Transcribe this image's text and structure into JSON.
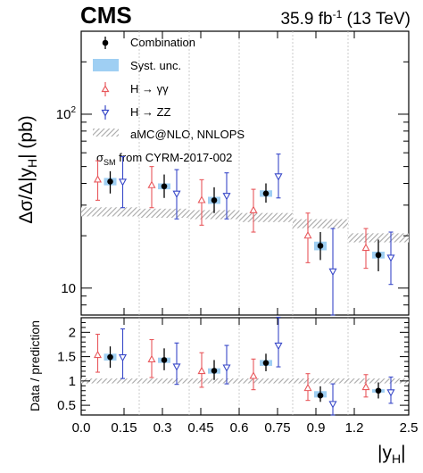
{
  "chart_data": {
    "type": "scatter",
    "header": {
      "experiment": "CMS",
      "lumi": "35.9 fb",
      "lumi_exp": "-1",
      "energy": " (13 TeV)"
    },
    "xlabel": "|y",
    "xlabel_sub": "H",
    "xlabel_end": "|",
    "ylabel": "Δσ/Δ|y",
    "ylabel_sub": "H",
    "ylabel_end": "| (pb)",
    "ratio_ylabel": "Data / prediction",
    "xlim": [
      0,
      2.5
    ],
    "x_ticks": [
      "0.0",
      "0.15",
      "0.3",
      "0.45",
      "0.6",
      "0.75",
      "0.9",
      "1.2",
      "2.5"
    ],
    "x_tick_values": [
      0,
      0.15,
      0.3,
      0.45,
      0.6,
      0.75,
      0.9,
      1.2,
      2.5
    ],
    "main": {
      "ylim": [
        7,
        300
      ],
      "log": true,
      "y_tick_labels": [
        "10",
        "10",
        "2"
      ],
      "bin_edges": [
        0,
        0.15,
        0.3,
        0.6,
        0.9,
        1.2,
        2.5
      ],
      "prediction": [
        27.5,
        27.0,
        26.5,
        25.5,
        23.5,
        19.5
      ],
      "combination": {
        "name": "Combination",
        "y": [
          41,
          38.5,
          32,
          35,
          17.5,
          15.5
        ],
        "lo": [
          35,
          33,
          27,
          31,
          14.5,
          12.5
        ],
        "hi": [
          47,
          45,
          38,
          40,
          21,
          19
        ]
      },
      "hgg": {
        "name": "H → γγ",
        "y": [
          42,
          39,
          32,
          28,
          20,
          17
        ],
        "lo": [
          32,
          29,
          23,
          21,
          14,
          13
        ],
        "hi": [
          54,
          50,
          42,
          37,
          27,
          22
        ]
      },
      "hzz": {
        "name": "H → ZZ",
        "y": [
          41,
          35,
          34,
          44,
          12.5,
          15
        ],
        "lo": [
          29,
          25,
          25,
          33,
          7,
          10.5
        ],
        "hi": [
          57,
          48,
          46,
          59,
          22,
          21
        ]
      },
      "syst": {
        "lo": [
          39,
          37,
          30.5,
          33.5,
          16.5,
          14.8
        ],
        "hi": [
          43,
          40,
          33.5,
          36.5,
          18.5,
          16.2
        ]
      }
    },
    "ratio": {
      "ylim": [
        0.3,
        2.3
      ],
      "y_ticks": [
        0.5,
        1,
        1.5,
        2
      ],
      "y_tick_labels": [
        "0.5",
        "1",
        "1.5",
        "2"
      ],
      "band": [
        0.95,
        1.05
      ],
      "combination": {
        "y": [
          1.49,
          1.43,
          1.21,
          1.37,
          0.7,
          0.8
        ],
        "lo": [
          1.27,
          1.22,
          1.02,
          1.2,
          0.57,
          0.64
        ],
        "hi": [
          1.71,
          1.67,
          1.43,
          1.56,
          0.89,
          0.97
        ]
      },
      "hgg": {
        "y": [
          1.53,
          1.44,
          1.2,
          1.1,
          0.85,
          0.87
        ],
        "lo": [
          1.18,
          1.07,
          0.87,
          0.82,
          0.6,
          0.67
        ],
        "hi": [
          1.96,
          1.85,
          1.58,
          1.45,
          1.15,
          1.13
        ]
      },
      "hzz": {
        "y": [
          1.49,
          1.3,
          1.28,
          1.73,
          0.53,
          0.77
        ],
        "lo": [
          1.05,
          0.93,
          0.94,
          1.29,
          0.3,
          0.54
        ],
        "hi": [
          2.07,
          1.78,
          1.73,
          2.31,
          0.94,
          1.08
        ]
      },
      "syst": {
        "lo": [
          1.42,
          1.37,
          1.15,
          1.31,
          0.66,
          0.76
        ],
        "hi": [
          1.56,
          1.48,
          1.26,
          1.43,
          0.79,
          0.83
        ]
      }
    },
    "legend": {
      "combination": "Combination",
      "syst": "Syst. unc.",
      "hgg": "H → γγ",
      "hzz": "H → ZZ",
      "theory": "aMC@NLO, NNLOPS",
      "sm_prefix": "σ",
      "sm_sub": "SM",
      "sm_suffix": " from CYRM-2017-002"
    },
    "colors": {
      "combination": "#000000",
      "syst": "#9fcff3",
      "hgg": "#e8575b",
      "hzz": "#3848c8",
      "theory": "#a8a8a8",
      "gridline": "#bfbfbf"
    }
  }
}
